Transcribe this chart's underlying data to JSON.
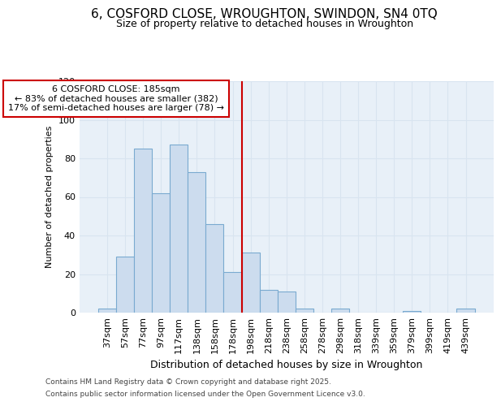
{
  "title_line1": "6, COSFORD CLOSE, WROUGHTON, SWINDON, SN4 0TQ",
  "title_line2": "Size of property relative to detached houses in Wroughton",
  "xlabel": "Distribution of detached houses by size in Wroughton",
  "ylabel": "Number of detached properties",
  "categories": [
    "37sqm",
    "57sqm",
    "77sqm",
    "97sqm",
    "117sqm",
    "138sqm",
    "158sqm",
    "178sqm",
    "198sqm",
    "218sqm",
    "238sqm",
    "258sqm",
    "278sqm",
    "298sqm",
    "318sqm",
    "339sqm",
    "359sqm",
    "379sqm",
    "399sqm",
    "419sqm",
    "439sqm"
  ],
  "values": [
    2,
    29,
    85,
    62,
    87,
    73,
    46,
    21,
    31,
    12,
    11,
    2,
    0,
    2,
    0,
    0,
    0,
    1,
    0,
    0,
    2
  ],
  "bar_color": "#ccdcee",
  "bar_edge_color": "#7aaad0",
  "annotation_line_index": 7,
  "annotation_box_text": "6 COSFORD CLOSE: 185sqm\n← 83% of detached houses are smaller (382)\n17% of semi-detached houses are larger (78) →",
  "annotation_line_color": "#cc0000",
  "annotation_box_edge_color": "#cc0000",
  "annotation_box_face_color": "#ffffff",
  "ylim": [
    0,
    120
  ],
  "yticks": [
    0,
    20,
    40,
    60,
    80,
    100,
    120
  ],
  "grid_color": "#d8e4f0",
  "background_color": "#ffffff",
  "plot_bg_color": "#e8f0f8",
  "footer_line1": "Contains HM Land Registry data © Crown copyright and database right 2025.",
  "footer_line2": "Contains public sector information licensed under the Open Government Licence v3.0.",
  "title_fontsize": 11,
  "subtitle_fontsize": 9,
  "xlabel_fontsize": 9,
  "ylabel_fontsize": 8,
  "tick_fontsize": 8,
  "annotation_fontsize": 8,
  "footer_fontsize": 6.5
}
